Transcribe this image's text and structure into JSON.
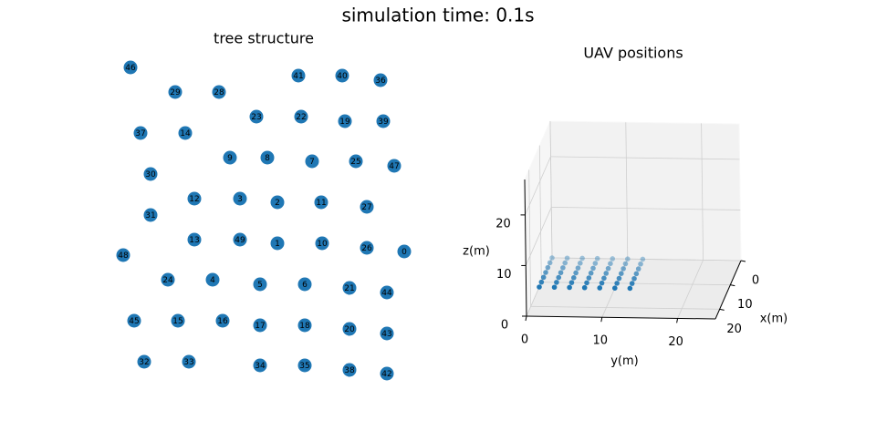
{
  "title": "simulation time: 0.1s",
  "chart_data": [
    {
      "type": "scatter",
      "title": "tree structure",
      "color": "#1f77b4",
      "labels": [
        0,
        1,
        2,
        3,
        4,
        5,
        6,
        7,
        8,
        9,
        10,
        11,
        12,
        13,
        14,
        15,
        16,
        17,
        18,
        19,
        20,
        21,
        22,
        23,
        24,
        25,
        26,
        27,
        28,
        29,
        30,
        31,
        32,
        33,
        34,
        35,
        36,
        37,
        38,
        39,
        40,
        41,
        42,
        43,
        44,
        45,
        46,
        47,
        48,
        49
      ],
      "x": [
        443,
        304,
        304,
        263,
        233,
        285,
        334,
        342,
        293,
        252,
        353,
        352,
        213,
        213,
        203,
        195,
        244,
        285,
        334,
        378,
        383,
        383,
        330,
        281,
        184,
        390,
        402,
        402,
        240,
        192,
        165,
        165,
        158,
        207,
        285,
        334,
        417,
        154,
        383,
        420,
        375,
        327,
        424,
        424,
        424,
        147,
        143,
        432,
        135,
        263
      ],
      "y": [
        204,
        213,
        258,
        262,
        173,
        168,
        168,
        303,
        307,
        307,
        213,
        258,
        262,
        217,
        334,
        128,
        128,
        123,
        123,
        347,
        119,
        164,
        352,
        352,
        173,
        303,
        208,
        253,
        379,
        379,
        289,
        244,
        83,
        83,
        79,
        79,
        392,
        334,
        74,
        347,
        397,
        397,
        70,
        114,
        159,
        128,
        406,
        298,
        200,
        217
      ]
    },
    {
      "type": "scatter3d",
      "title": "UAV positions",
      "color": "#1f77b4",
      "xlabel": "x(m)",
      "ylabel": "y(m)",
      "zlabel": "z(m)",
      "xlim": [
        0,
        24
      ],
      "ylim": [
        0,
        25
      ],
      "zlim": [
        0,
        27
      ],
      "xticks": [
        0,
        10,
        20
      ],
      "yticks": [
        0,
        10,
        20
      ],
      "zticks": [
        0,
        10,
        20
      ],
      "x": [
        0,
        0,
        0,
        0,
        0,
        0,
        0,
        2,
        2,
        2,
        2,
        2,
        2,
        2,
        4,
        4,
        4,
        4,
        4,
        4,
        4,
        6,
        6,
        6,
        6,
        6,
        6,
        6,
        8,
        8,
        8,
        8,
        8,
        8,
        8,
        10,
        10,
        10,
        10,
        10,
        10,
        10,
        12,
        12,
        12,
        12,
        12,
        12,
        12
      ],
      "y": [
        0,
        2,
        4,
        6,
        8,
        10,
        12,
        0,
        2,
        4,
        6,
        8,
        10,
        12,
        0,
        2,
        4,
        6,
        8,
        10,
        12,
        0,
        2,
        4,
        6,
        8,
        10,
        12,
        0,
        2,
        4,
        6,
        8,
        10,
        12,
        0,
        2,
        4,
        6,
        8,
        10,
        12,
        0,
        2,
        4,
        6,
        8,
        10,
        12
      ],
      "z": [
        0,
        0,
        0,
        0,
        0,
        0,
        0,
        0,
        0,
        0,
        0,
        0,
        0,
        0,
        0,
        0,
        0,
        0,
        0,
        0,
        0,
        0,
        0,
        0,
        0,
        0,
        0,
        0,
        0,
        0,
        0,
        0,
        0,
        0,
        0,
        0,
        0,
        0,
        0,
        0,
        0,
        0,
        0,
        0,
        0,
        0,
        0,
        0,
        0
      ]
    }
  ]
}
